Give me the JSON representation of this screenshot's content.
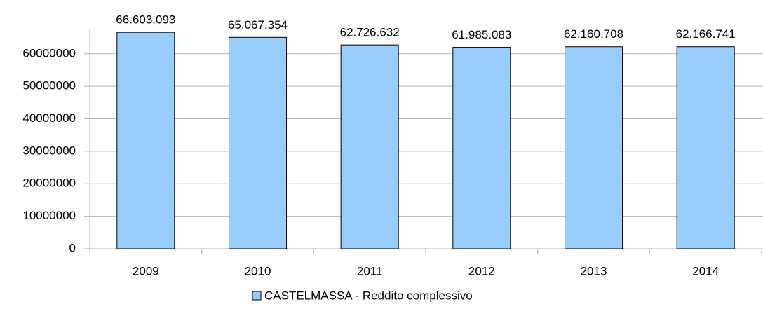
{
  "chart_data": {
    "type": "bar",
    "categories": [
      "2009",
      "2010",
      "2011",
      "2012",
      "2013",
      "2014"
    ],
    "series": [
      {
        "name": "CASTELMASSA - Reddito complessivo",
        "color": "#99ccff",
        "values": [
          66603093,
          65067354,
          62726632,
          61985083,
          62160708,
          62166741
        ],
        "value_labels": [
          "66.603.093",
          "65.067.354",
          "62.726.632",
          "61.985.083",
          "62.160.708",
          "62.166.741"
        ]
      }
    ],
    "ylim": [
      0,
      67500000
    ],
    "yticks": [
      0,
      10000000,
      20000000,
      30000000,
      40000000,
      50000000,
      60000000
    ],
    "grid": true,
    "legend": "bottom"
  }
}
